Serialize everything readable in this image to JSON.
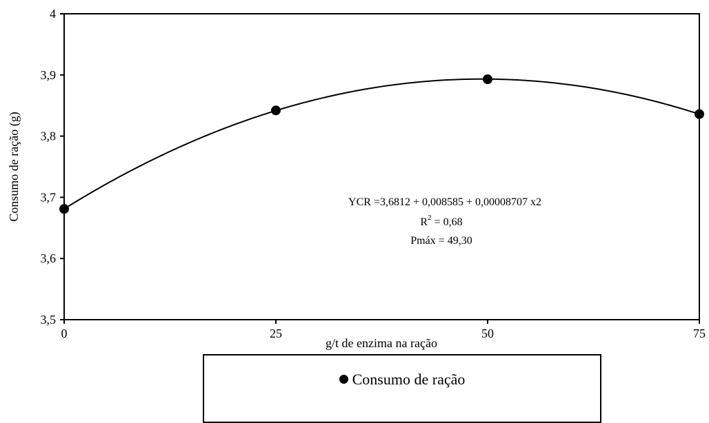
{
  "chart_data": {
    "type": "scatter",
    "xlabel": "g/t de enzima na ração",
    "ylabel": "Consumo de ração (g)",
    "x_ticks": [
      "0",
      "25",
      "50",
      "75"
    ],
    "y_ticks": [
      "3,5",
      "3,6",
      "3,7",
      "3,8",
      "3,9",
      "4"
    ],
    "xlim": [
      0,
      75
    ],
    "ylim": [
      3.5,
      4.0
    ],
    "grid": false,
    "series": [
      {
        "name": "Consumo de ração",
        "x": [
          0,
          25,
          50,
          75
        ],
        "y": [
          3.681,
          3.842,
          3.893,
          3.836
        ],
        "trendline": "quadratic",
        "color": "#000000"
      }
    ],
    "annotations": {
      "equation": "YCR =3,6812 + 0,008585 + 0,00008707 x2",
      "r2_label": "R",
      "r2_sup": "2",
      "r2_value": " = 0,68",
      "pmax": "Pmáx = 49,30"
    },
    "legend": {
      "placement": "bottom",
      "label": "Consumo de ração"
    }
  }
}
